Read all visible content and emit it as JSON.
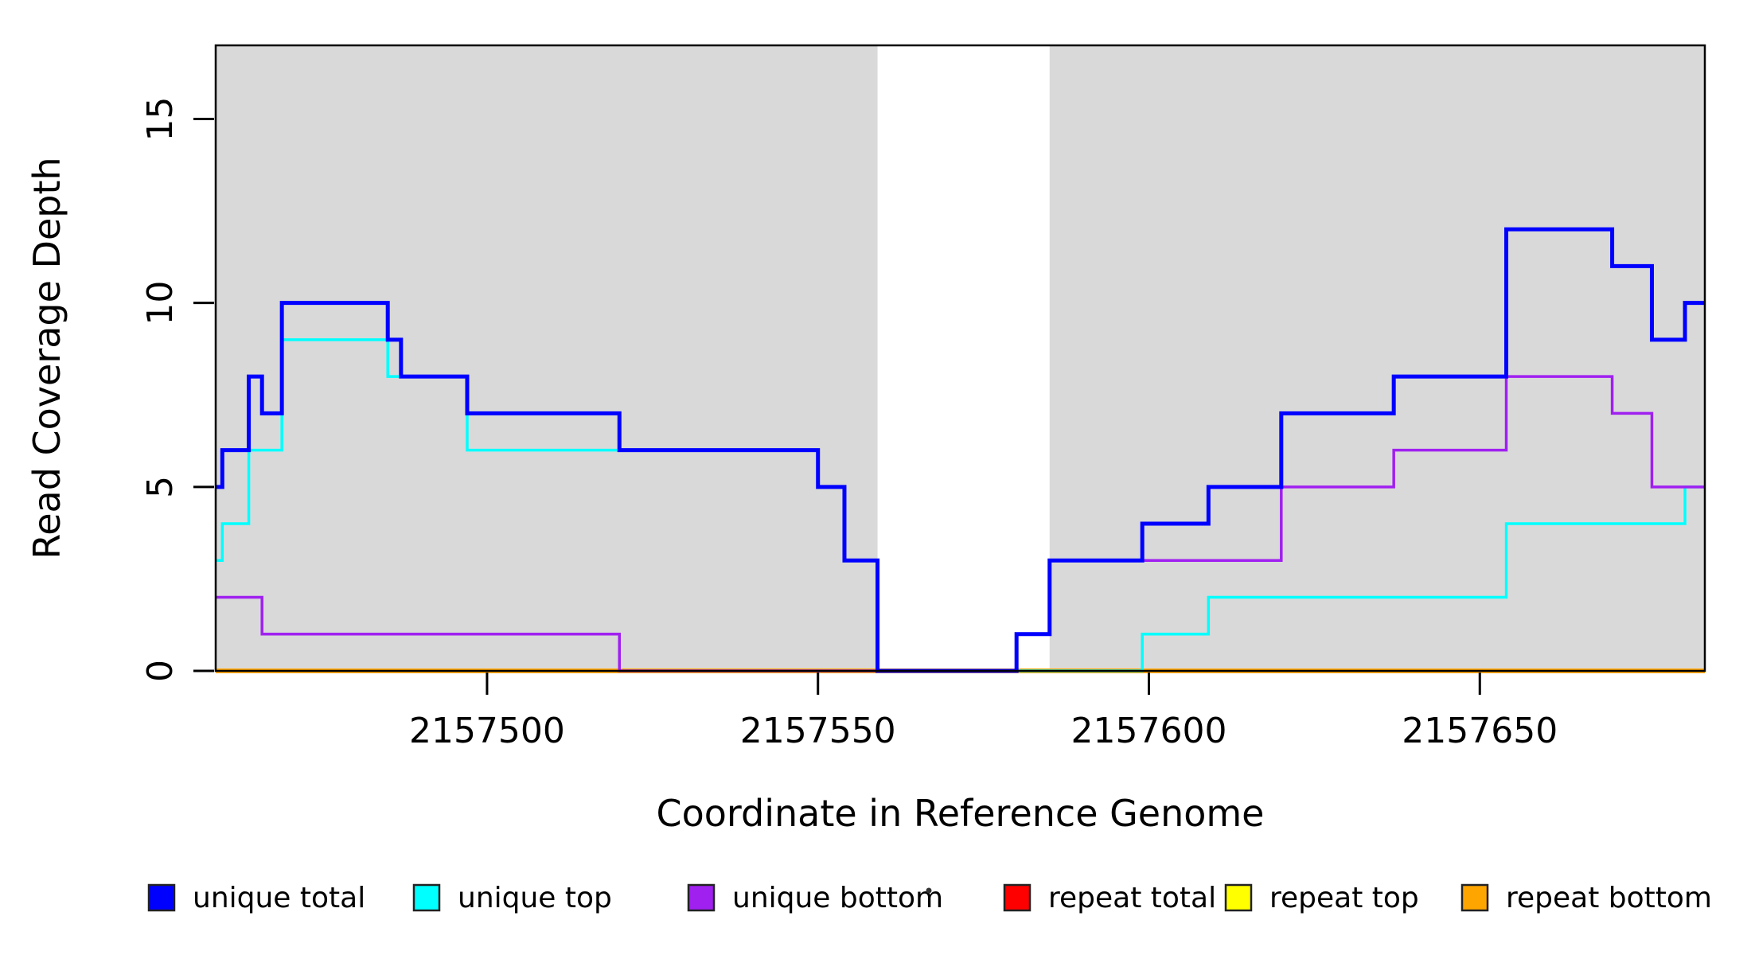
{
  "figure": {
    "xlabel": "Coordinate in Reference Genome",
    "ylabel": "Read Coverage Depth"
  },
  "chart_data": {
    "type": "line",
    "style": "step-post",
    "title": "",
    "xlabel": "Coordinate in Reference Genome",
    "ylabel": "Read Coverage Depth",
    "xlim": [
      2157459,
      2157684
    ],
    "ylim": [
      0,
      17
    ],
    "xticks": [
      2157500,
      2157550,
      2157600,
      2157650
    ],
    "yticks": [
      0,
      5,
      10,
      15
    ],
    "grid": false,
    "legend_position": "bottom-horizontal",
    "background_shading": {
      "color": "#d9d9d9",
      "note": "gray bands mark regions with reference alignment; white gap has no gray shading",
      "regions": [
        [
          2157459,
          2157559
        ],
        [
          2157585,
          2157684
        ]
      ]
    },
    "series": [
      {
        "name": "unique total",
        "color": "#0000ff",
        "line_width": 5,
        "points": [
          [
            2157459,
            5
          ],
          [
            2157460,
            6
          ],
          [
            2157464,
            8
          ],
          [
            2157466,
            7
          ],
          [
            2157469,
            10
          ],
          [
            2157485,
            9
          ],
          [
            2157487,
            8
          ],
          [
            2157497,
            7
          ],
          [
            2157520,
            6
          ],
          [
            2157550,
            5
          ],
          [
            2157554,
            3
          ],
          [
            2157559,
            0
          ],
          [
            2157580,
            1
          ],
          [
            2157585,
            3
          ],
          [
            2157599,
            4
          ],
          [
            2157609,
            5
          ],
          [
            2157620,
            7
          ],
          [
            2157637,
            8
          ],
          [
            2157654,
            12
          ],
          [
            2157670,
            11
          ],
          [
            2157676,
            9
          ],
          [
            2157681,
            10
          ]
        ]
      },
      {
        "name": "unique top",
        "color": "#00ffff",
        "line_width": 3.5,
        "points": [
          [
            2157459,
            3
          ],
          [
            2157460,
            4
          ],
          [
            2157464,
            6
          ],
          [
            2157469,
            9
          ],
          [
            2157485,
            8
          ],
          [
            2157497,
            6
          ],
          [
            2157550,
            5
          ],
          [
            2157554,
            3
          ],
          [
            2157559,
            0
          ],
          [
            2157599,
            1
          ],
          [
            2157609,
            2
          ],
          [
            2157654,
            4
          ],
          [
            2157681,
            5
          ]
        ]
      },
      {
        "name": "unique bottom",
        "color": "#a020f0",
        "line_width": 3.5,
        "points": [
          [
            2157459,
            2
          ],
          [
            2157466,
            1
          ],
          [
            2157520,
            0
          ],
          [
            2157580,
            1
          ],
          [
            2157585,
            3
          ],
          [
            2157620,
            5
          ],
          [
            2157637,
            6
          ],
          [
            2157654,
            8
          ],
          [
            2157670,
            7
          ],
          [
            2157676,
            5
          ]
        ]
      },
      {
        "name": "repeat total",
        "color": "#ff0000",
        "line_width": 3,
        "points": [
          [
            2157459,
            0
          ]
        ]
      },
      {
        "name": "repeat top",
        "color": "#ffff00",
        "line_width": 3,
        "points": [
          [
            2157459,
            0
          ]
        ]
      },
      {
        "name": "repeat bottom",
        "color": "#ffa500",
        "line_width": 6,
        "points": [
          [
            2157459,
            0
          ]
        ]
      }
    ]
  },
  "legend": {
    "items": [
      {
        "label": "unique total",
        "color": "#0000ff"
      },
      {
        "label": "unique top",
        "color": "#00ffff"
      },
      {
        "label": "unique bottom",
        "color": "#a020f0"
      },
      {
        "label": "repeat total",
        "color": "#ff0000"
      },
      {
        "label": "repeat top",
        "color": "#ffff00"
      },
      {
        "label": "repeat bottom",
        "color": "#ffa500"
      }
    ],
    "stray_dot": "·"
  }
}
